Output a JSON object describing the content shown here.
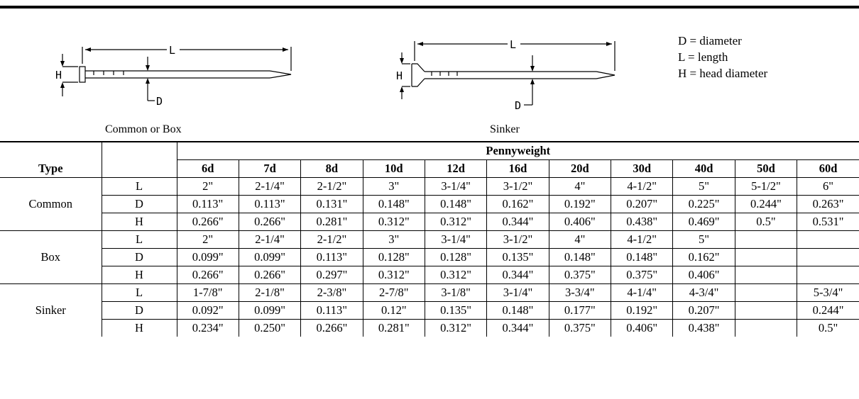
{
  "legend": [
    "D = diameter",
    "L = length",
    "H = head diameter"
  ],
  "diagrams": {
    "common": {
      "caption": "Common or Box",
      "L": "L",
      "D": "D",
      "H": "H"
    },
    "sinker": {
      "caption": "Sinker",
      "L": "L",
      "D": "D",
      "H": "H"
    }
  },
  "table": {
    "group_header": "Pennyweight",
    "type_header": "Type",
    "columns": [
      "6d",
      "7d",
      "8d",
      "10d",
      "12d",
      "16d",
      "20d",
      "30d",
      "40d",
      "50d",
      "60d"
    ],
    "groups": [
      {
        "type": "Common",
        "rows": [
          {
            "dim": "L",
            "values": [
              "2\"",
              "2-1/4\"",
              "2-1/2\"",
              "3\"",
              "3-1/4\"",
              "3-1/2\"",
              "4\"",
              "4-1/2\"",
              "5\"",
              "5-1/2\"",
              "6\""
            ]
          },
          {
            "dim": "D",
            "values": [
              "0.113\"",
              "0.113\"",
              "0.131\"",
              "0.148\"",
              "0.148\"",
              "0.162\"",
              "0.192\"",
              "0.207\"",
              "0.225\"",
              "0.244\"",
              "0.263\""
            ]
          },
          {
            "dim": "H",
            "values": [
              "0.266\"",
              "0.266\"",
              "0.281\"",
              "0.312\"",
              "0.312\"",
              "0.344\"",
              "0.406\"",
              "0.438\"",
              "0.469\"",
              "0.5\"",
              "0.531\""
            ]
          }
        ]
      },
      {
        "type": "Box",
        "rows": [
          {
            "dim": "L",
            "values": [
              "2\"",
              "2-1/4\"",
              "2-1/2\"",
              "3\"",
              "3-1/4\"",
              "3-1/2\"",
              "4\"",
              "4-1/2\"",
              "5\"",
              "",
              ""
            ]
          },
          {
            "dim": "D",
            "values": [
              "0.099\"",
              "0.099\"",
              "0.113\"",
              "0.128\"",
              "0.128\"",
              "0.135\"",
              "0.148\"",
              "0.148\"",
              "0.162\"",
              "",
              ""
            ]
          },
          {
            "dim": "H",
            "values": [
              "0.266\"",
              "0.266\"",
              "0.297\"",
              "0.312\"",
              "0.312\"",
              "0.344\"",
              "0.375\"",
              "0.375\"",
              "0.406\"",
              "",
              ""
            ]
          }
        ]
      },
      {
        "type": "Sinker",
        "rows": [
          {
            "dim": "L",
            "values": [
              "1-7/8\"",
              "2-1/8\"",
              "2-3/8\"",
              "2-7/8\"",
              "3-1/8\"",
              "3-1/4\"",
              "3-3/4\"",
              "4-1/4\"",
              "4-3/4\"",
              "",
              "5-3/4\""
            ]
          },
          {
            "dim": "D",
            "values": [
              "0.092\"",
              "0.099\"",
              "0.113\"",
              "0.12\"",
              "0.135\"",
              "0.148\"",
              "0.177\"",
              "0.192\"",
              "0.207\"",
              "",
              "0.244\""
            ]
          },
          {
            "dim": "H",
            "values": [
              "0.234\"",
              "0.250\"",
              "0.266\"",
              "0.281\"",
              "0.312\"",
              "0.344\"",
              "0.375\"",
              "0.406\"",
              "0.438\"",
              "",
              "0.5\""
            ]
          }
        ]
      }
    ]
  }
}
